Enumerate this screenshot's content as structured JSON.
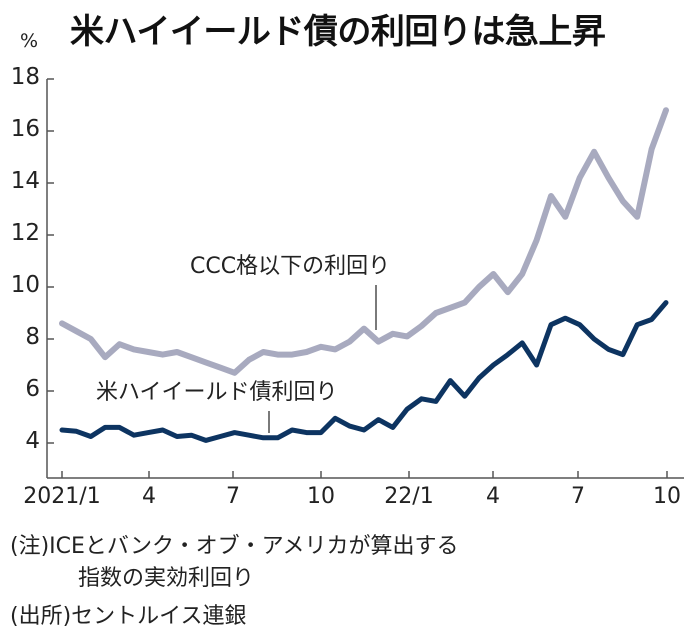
{
  "header": {
    "title": "米ハイイールド債の利回りは急上昇",
    "unit": "%"
  },
  "colors": {
    "ccc_series": "#a8aabf",
    "hy_series": "#0d3461",
    "axis": "#555555",
    "text": "#222222"
  },
  "annotations": {
    "ccc_label": "CCC格以下の利回り",
    "hy_label": "米ハイイールド債利回り"
  },
  "notes": {
    "note_line1": "(注)ICEとバンク・オブ・アメリカが算出する",
    "note_line2": "指数の実効利回り",
    "source": "(出所)セントルイス連銀"
  },
  "chart_data": {
    "type": "line",
    "title": "米ハイイールド債の利回りは急上昇",
    "xlabel": "",
    "ylabel": "%",
    "ylim": [
      2.7,
      18
    ],
    "yticks": [
      4,
      6,
      8,
      10,
      12,
      14,
      16,
      18
    ],
    "xticks": [
      "2021/1",
      "4",
      "7",
      "10",
      "22/1",
      "4",
      "7",
      "10"
    ],
    "grid": false,
    "legend": "inline annotations",
    "series": [
      {
        "name": "CCC格以下の利回り",
        "color": "#a8aabf",
        "x": [
          "2021-01",
          "2021-01-15",
          "2021-02",
          "2021-02-15",
          "2021-03",
          "2021-03-15",
          "2021-04",
          "2021-04-15",
          "2021-05",
          "2021-05-15",
          "2021-06",
          "2021-06-15",
          "2021-07",
          "2021-07-15",
          "2021-08",
          "2021-08-15",
          "2021-09",
          "2021-09-15",
          "2021-10",
          "2021-10-15",
          "2021-11",
          "2021-11-15",
          "2021-12",
          "2021-12-15",
          "2022-01",
          "2022-01-15",
          "2022-02",
          "2022-02-15",
          "2022-03",
          "2022-03-15",
          "2022-04",
          "2022-04-15",
          "2022-05",
          "2022-05-15",
          "2022-06",
          "2022-06-15",
          "2022-07",
          "2022-07-15",
          "2022-08",
          "2022-08-15",
          "2022-09",
          "2022-09-15",
          "2022-10"
        ],
        "values": [
          8.6,
          8.3,
          8.0,
          7.3,
          7.8,
          7.6,
          7.5,
          7.4,
          7.5,
          7.3,
          7.1,
          6.9,
          6.7,
          7.2,
          7.5,
          7.4,
          7.4,
          7.5,
          7.7,
          7.6,
          7.9,
          8.4,
          7.9,
          8.2,
          8.1,
          8.5,
          9.0,
          9.2,
          9.4,
          10.0,
          10.5,
          9.8,
          10.5,
          11.8,
          13.5,
          12.7,
          14.2,
          15.2,
          14.2,
          13.3,
          12.7,
          15.3,
          16.8
        ]
      },
      {
        "name": "米ハイイールド債利回り",
        "color": "#0d3461",
        "x": [
          "2021-01",
          "2021-01-15",
          "2021-02",
          "2021-02-15",
          "2021-03",
          "2021-03-15",
          "2021-04",
          "2021-04-15",
          "2021-05",
          "2021-05-15",
          "2021-06",
          "2021-06-15",
          "2021-07",
          "2021-07-15",
          "2021-08",
          "2021-08-15",
          "2021-09",
          "2021-09-15",
          "2021-10",
          "2021-10-15",
          "2021-11",
          "2021-11-15",
          "2021-12",
          "2021-12-15",
          "2022-01",
          "2022-01-15",
          "2022-02",
          "2022-02-15",
          "2022-03",
          "2022-03-15",
          "2022-04",
          "2022-04-15",
          "2022-05",
          "2022-05-15",
          "2022-06",
          "2022-06-15",
          "2022-07",
          "2022-07-15",
          "2022-08",
          "2022-08-15",
          "2022-09",
          "2022-09-15",
          "2022-10"
        ],
        "values": [
          4.5,
          4.45,
          4.25,
          4.6,
          4.6,
          4.3,
          4.4,
          4.5,
          4.25,
          4.3,
          4.1,
          4.25,
          4.4,
          4.3,
          4.2,
          4.2,
          4.5,
          4.4,
          4.4,
          4.95,
          4.65,
          4.5,
          4.9,
          4.6,
          5.3,
          5.7,
          5.6,
          6.4,
          5.8,
          6.5,
          7.0,
          7.4,
          7.85,
          7.0,
          8.55,
          8.8,
          8.55,
          8.0,
          7.6,
          7.4,
          8.55,
          8.75,
          9.4
        ]
      }
    ]
  }
}
